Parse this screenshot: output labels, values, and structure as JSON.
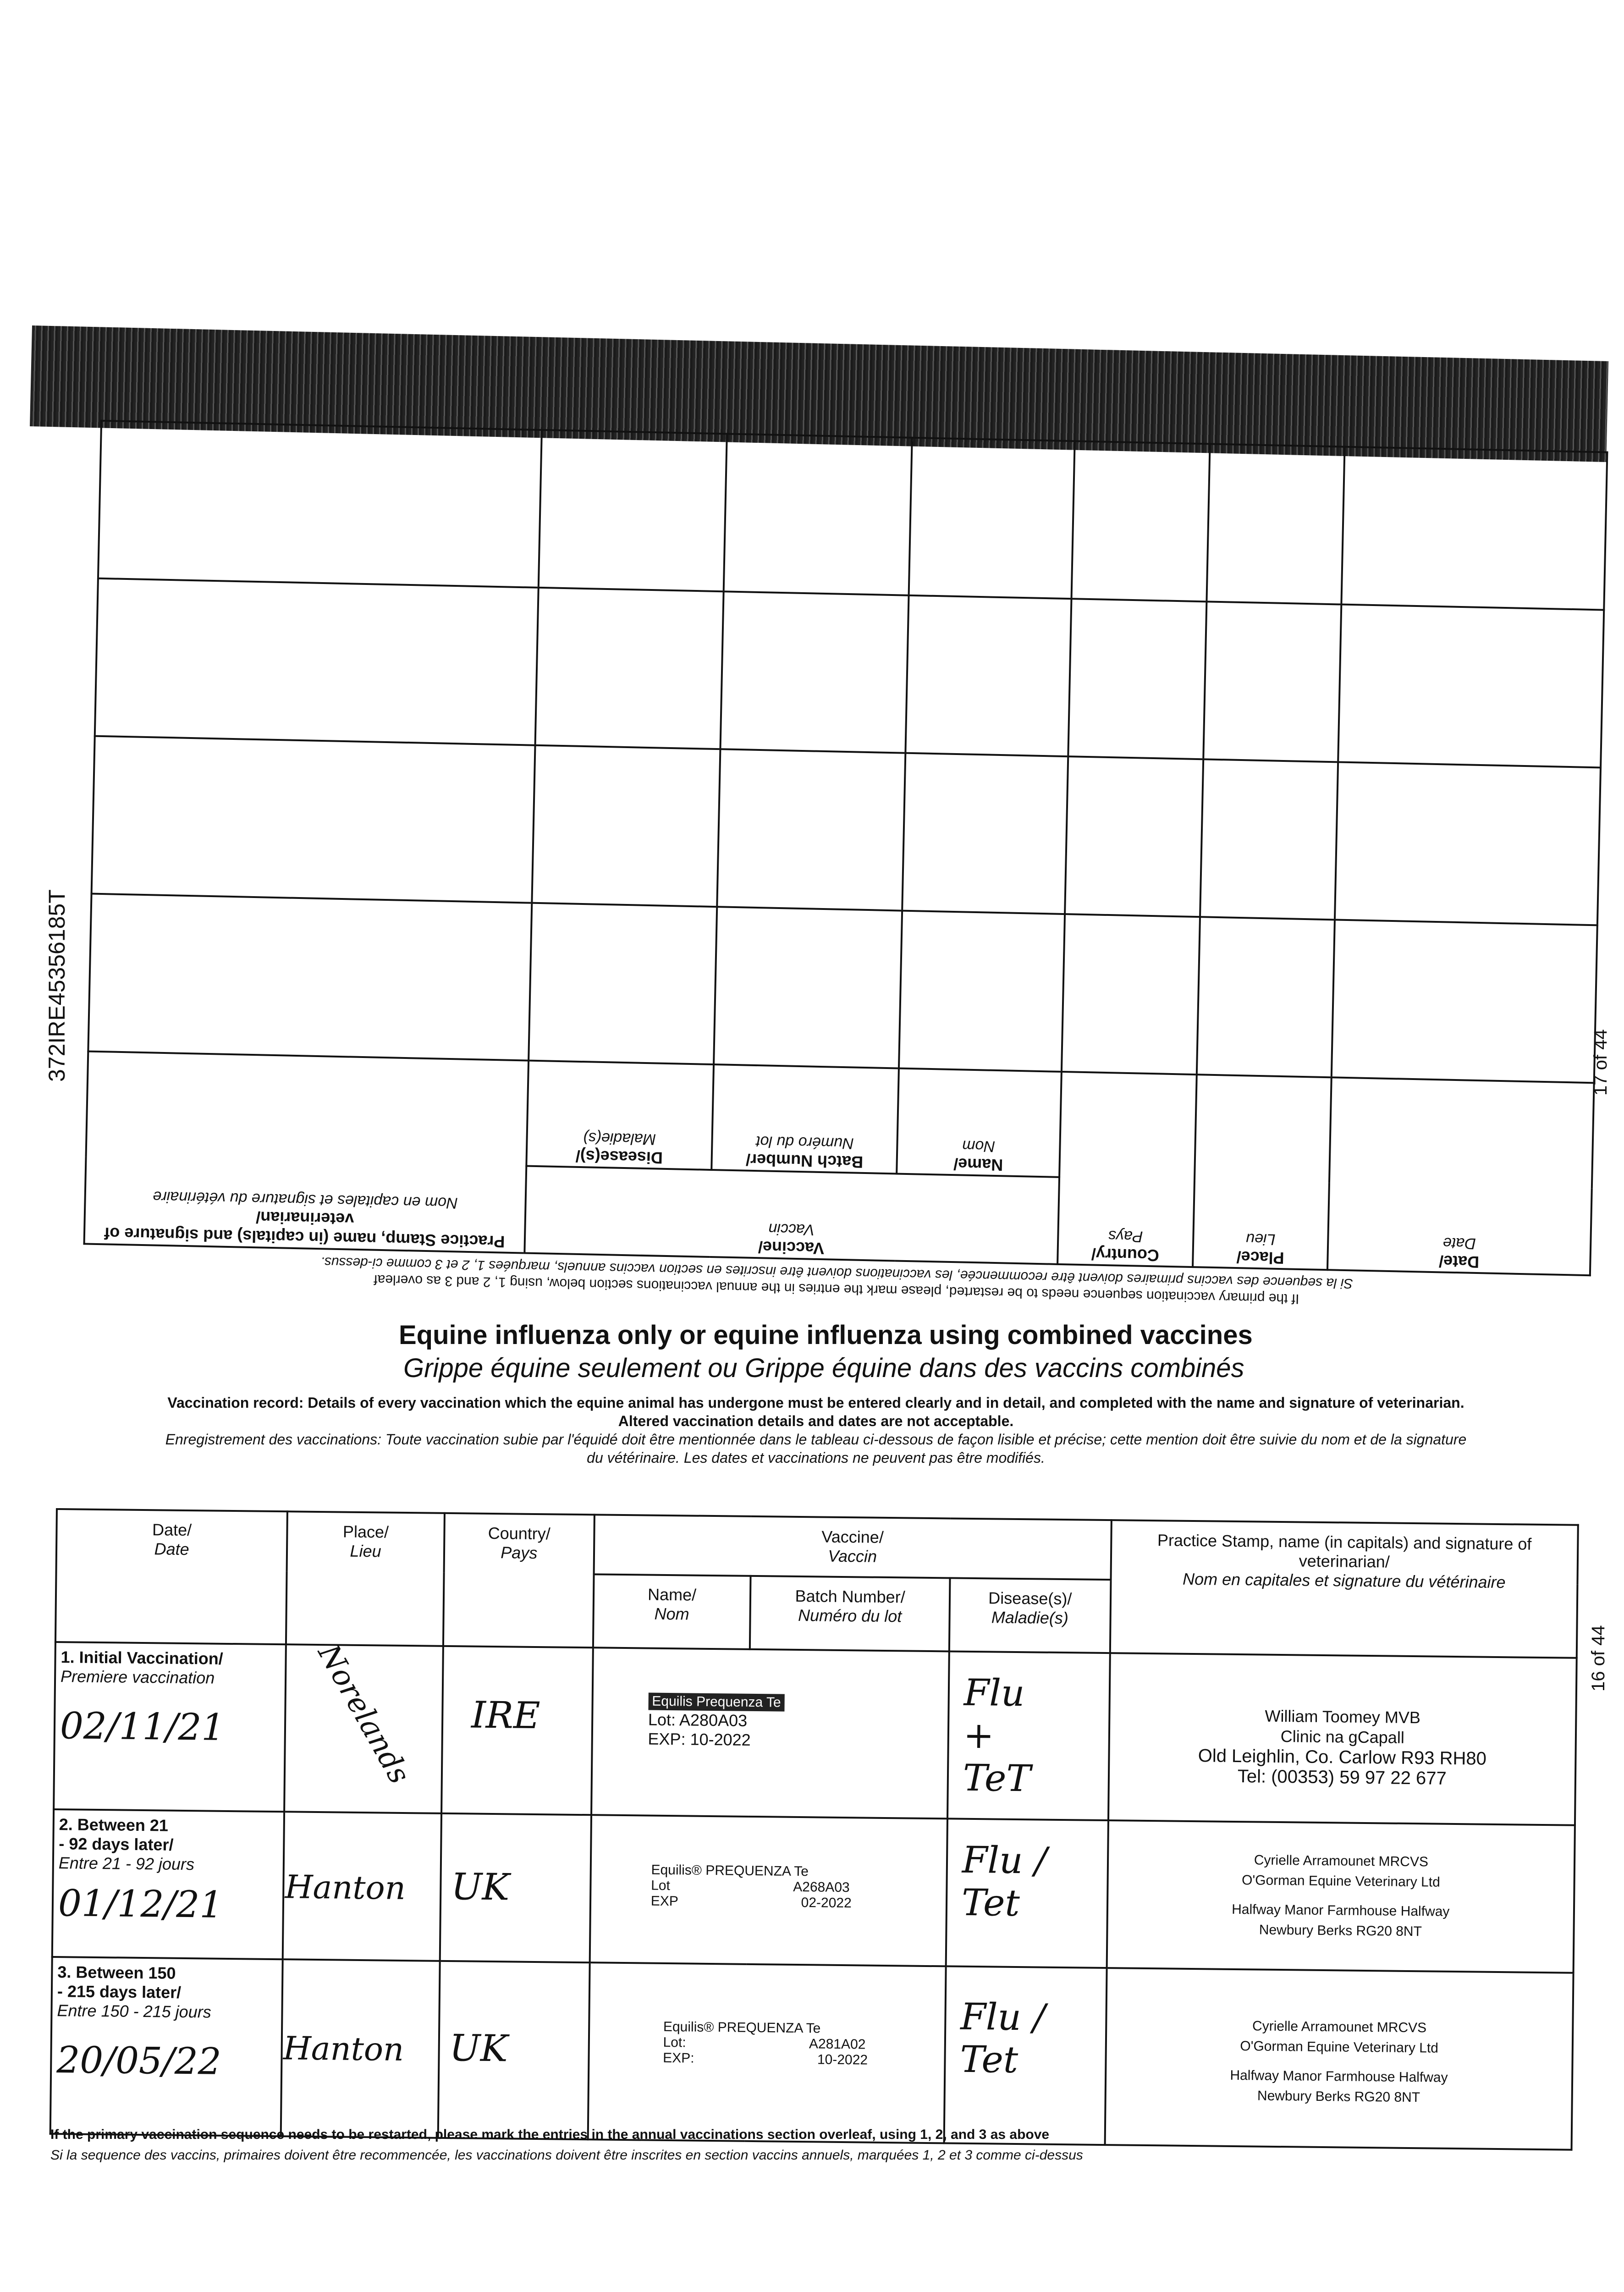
{
  "side_ids": {
    "horse_id": "372IRE45356185T",
    "page_upper": "17 of 44",
    "page_lower": "16 of 44"
  },
  "upper_table": {
    "note_en": "If the primary vaccination sequence needs to be restarted, please mark the entries in the annual vaccinations section below, using 1, 2 and 3 as overleaf",
    "note_fr": "Si la sequence des vaccins primaires doivent être recommencée, les vaccinations doivent être inscrites en section vaccins annuels, marquées 1, 2 et 3 comme ci-dessus.",
    "headers": {
      "date": "Date/",
      "date_fr": "Date",
      "place": "Place/",
      "place_fr": "Lieu",
      "country": "Country/",
      "country_fr": "Pays",
      "vaccine": "Vaccine/",
      "vaccine_fr": "Vaccin",
      "name": "Name/",
      "name_fr": "Nom",
      "batch": "Batch Number/",
      "batch_fr": "Numéro du lot",
      "disease": "Disease(s)/",
      "disease_fr": "Maladie(s)",
      "stamp": "Practice Stamp, name (in capitals) and signature of veterinarian/",
      "stamp_fr": "Nom en capitales et signature du vétérinaire"
    }
  },
  "title": {
    "en": "Equine influenza only or equine influenza using combined vaccines",
    "fr": "Grippe équine seulement ou Grippe équine dans des vaccins combinés"
  },
  "record": {
    "en1": "Vaccination record: Details of every vaccination which the equine animal has undergone must be entered clearly and in detail, and completed with the name and signature of veterinarian.",
    "en2": "Altered vaccination details and dates are not acceptable.",
    "fr1": "Enregistrement des vaccinations: Toute vaccination subie par l'équidé doit être mentionnée dans le tableau ci-dessous de façon lisible et précise; cette mention doit être suivie du nom et de la signature",
    "fr2": "du vétérinaire. Les dates et vaccinations ne peuvent pas être modifiés."
  },
  "lower_table": {
    "headers": {
      "date": "Date/",
      "date_fr": "Date",
      "place": "Place/",
      "place_fr": "Lieu",
      "country": "Country/",
      "country_fr": "Pays",
      "vaccine": "Vaccine/",
      "vaccine_fr": "Vaccin",
      "name": "Name/",
      "name_fr": "Nom",
      "batch": "Batch Number/",
      "batch_fr": "Numéro du lot",
      "disease": "Disease(s)/",
      "disease_fr": "Maladie(s)",
      "stamp": "Practice Stamp, name (in capitals) and signature of veterinarian/",
      "stamp_fr": "Nom en capitales et signature du vétérinaire"
    },
    "rows": [
      {
        "label": "1. Initial Vaccination/",
        "label_fr": "Premiere vaccination",
        "date": "02/11/21",
        "place": "Norelands",
        "country": "IRE",
        "vaccine_name": "Equilis Prequenza Te",
        "lot_label": "Lot:",
        "lot": "A280A03",
        "exp_label": "EXP:",
        "exp": "10-2022",
        "disease": "Flu + TeT",
        "stamp": [
          "William Toomey MVB",
          "Clinic na gCapall",
          "Old Leighlin, Co. Carlow R93 RH80",
          "Tel: (00353) 59 97 22 677"
        ]
      },
      {
        "label": "2. Between 21 - 92 days later/",
        "label_fr": "Entre 21 - 92 jours",
        "date": "01/12/21",
        "place": "Hanton",
        "country": "UK",
        "vaccine_name": "Equilis® PREQUENZA Te",
        "lot_label": "Lot",
        "lot": "A268A03",
        "exp_label": "EXP",
        "exp": "02-2022",
        "disease": "Flu / Tet",
        "stamp": [
          "Cyrielle Arramounet MRCVS",
          "O'Gorman Equine Veterinary Ltd",
          "Halfway Manor Farmhouse Halfway",
          "Newbury Berks RG20 8NT"
        ]
      },
      {
        "label": "3. Between 150 - 215 days later/",
        "label_fr": "Entre 150 - 215 jours",
        "date": "20/05/22",
        "place": "Hanton",
        "country": "UK",
        "vaccine_name": "Equilis® PREQUENZA Te",
        "lot_label": "Lot:",
        "lot": "A281A02",
        "exp_label": "EXP:",
        "exp": "10-2022",
        "disease": "Flu / Tet",
        "stamp": [
          "Cyrielle Arramounet MRCVS",
          "O'Gorman Equine Veterinary Ltd",
          "Halfway Manor Farmhouse Halfway",
          "Newbury Berks RG20 8NT"
        ]
      }
    ]
  },
  "footnote": {
    "en": "If the primary vaccination sequence needs to be restarted, please mark the entries in the annual vaccinations section overleaf, using 1, 2, and 3 as above",
    "fr": "Si la sequence des vaccins, primaires doivent être recommencée, les vaccinations doivent être inscrites en section vaccins annuels, marquées 1, 2 et 3 comme ci-dessus"
  }
}
